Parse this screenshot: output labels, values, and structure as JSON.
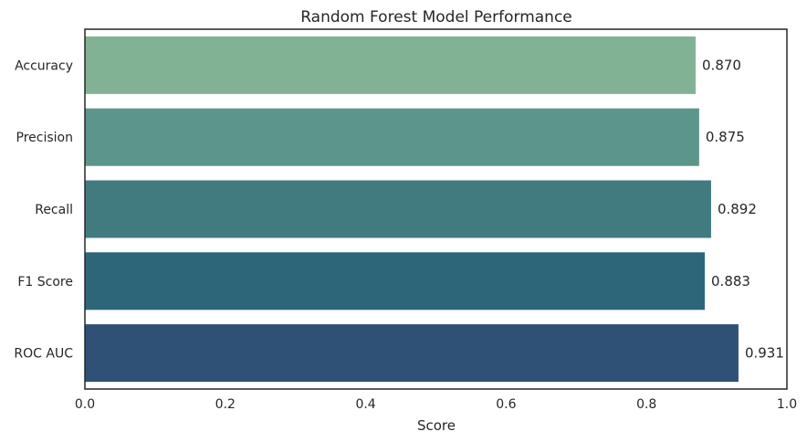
{
  "chart_data": {
    "type": "bar",
    "orientation": "horizontal",
    "title": "Random Forest Model Performance",
    "xlabel": "Score",
    "ylabel": "",
    "xlim": [
      0,
      1.0
    ],
    "xticks": [
      "0.0",
      "0.2",
      "0.4",
      "0.6",
      "0.8",
      "1.0"
    ],
    "categories": [
      "Accuracy",
      "Precision",
      "Recall",
      "F1 Score",
      "ROC AUC"
    ],
    "values": [
      0.87,
      0.875,
      0.892,
      0.883,
      0.931
    ],
    "value_labels": [
      "0.870",
      "0.875",
      "0.892",
      "0.883",
      "0.931"
    ],
    "colors": [
      "#82b294",
      "#5b958b",
      "#417b80",
      "#2d6679",
      "#2f5175"
    ],
    "grid": false,
    "legend": "none"
  }
}
